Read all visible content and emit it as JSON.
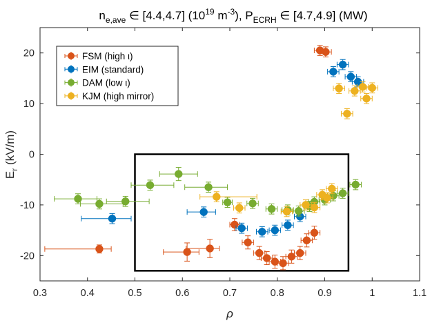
{
  "chart_data": {
    "type": "scatter",
    "title": {
      "main": "n",
      "main_sub": "e,ave",
      "range1": " ∈ [4.4,4.7] (10",
      "range1_sup": "19",
      "range1_unit": " m",
      "range1_unit_sup": "-3",
      "range1_close": "), P",
      "power_sub": "ECRH",
      "range2": " ∈ [4.7,4.9] (MW)"
    },
    "xlabel": "ρ",
    "ylabel": {
      "main": "E",
      "sub": "r",
      "unit": " (kV/m)"
    },
    "xlim": [
      0.3,
      1.1
    ],
    "ylim": [
      -25,
      25
    ],
    "xticks": [
      0.3,
      0.4,
      0.5,
      0.6,
      0.7,
      0.8,
      0.9,
      1.0,
      1.1
    ],
    "xtick_labels": [
      "0.3",
      "0.4",
      "0.5",
      "0.6",
      "0.7",
      "0.8",
      "0.9",
      "1",
      "1.1"
    ],
    "yticks": [
      -20,
      -10,
      0,
      10,
      20
    ],
    "ytick_labels": [
      "-20",
      "-10",
      "0",
      "10",
      "20"
    ],
    "highlight_box": {
      "x": [
        0.5,
        0.95
      ],
      "y": [
        -23,
        0
      ]
    },
    "legend_position": "top-left",
    "series": [
      {
        "name": "FSM (high ι)",
        "color": "#D95319",
        "points": [
          {
            "x": 0.425,
            "y": -18.7,
            "xerr": [
              0.115,
              0.025
            ],
            "yerr": 0.8
          },
          {
            "x": 0.61,
            "y": -19.3,
            "xerr": [
              0.05,
              0.025
            ],
            "yerr": 1.8
          },
          {
            "x": 0.658,
            "y": -18.6,
            "xerr": [
              0.05,
              0.02
            ],
            "yerr": 1.8
          },
          {
            "x": 0.71,
            "y": -13.9,
            "xerr": [
              0.01,
              0.01
            ],
            "yerr": 1.2
          },
          {
            "x": 0.738,
            "y": -17.4,
            "xerr": [
              0.012,
              0.012
            ],
            "yerr": 1.3
          },
          {
            "x": 0.762,
            "y": -19.5,
            "xerr": [
              0.012,
              0.012
            ],
            "yerr": 1.3
          },
          {
            "x": 0.778,
            "y": -20.5,
            "xerr": [
              0.012,
              0.012
            ],
            "yerr": 1.3
          },
          {
            "x": 0.795,
            "y": -21.2,
            "xerr": [
              0.012,
              0.012
            ],
            "yerr": 1.3
          },
          {
            "x": 0.812,
            "y": -21.5,
            "xerr": [
              0.012,
              0.012
            ],
            "yerr": 1.3
          },
          {
            "x": 0.83,
            "y": -20.2,
            "xerr": [
              0.012,
              0.012
            ],
            "yerr": 1.3
          },
          {
            "x": 0.848,
            "y": -19.5,
            "xerr": [
              0.012,
              0.012
            ],
            "yerr": 1.3
          },
          {
            "x": 0.862,
            "y": -17.0,
            "xerr": [
              0.012,
              0.012
            ],
            "yerr": 1.3
          },
          {
            "x": 0.878,
            "y": -15.5,
            "xerr": [
              0.012,
              0.012
            ],
            "yerr": 1.3
          },
          {
            "x": 0.89,
            "y": 20.5,
            "xerr": [
              0.012,
              0.012
            ],
            "yerr": 1.0
          },
          {
            "x": 0.902,
            "y": 20.2,
            "xerr": [
              0.012,
              0.012
            ],
            "yerr": 1.0
          }
        ]
      },
      {
        "name": "EIM (standard)",
        "color": "#0072BD",
        "points": [
          {
            "x": 0.452,
            "y": -12.7,
            "xerr": [
              0.065,
              0.04
            ],
            "yerr": 1.0
          },
          {
            "x": 0.645,
            "y": -11.4,
            "xerr": [
              0.035,
              0.025
            ],
            "yerr": 1.0
          },
          {
            "x": 0.725,
            "y": -14.6,
            "xerr": [
              0.012,
              0.012
            ],
            "yerr": 1.0
          },
          {
            "x": 0.768,
            "y": -15.3,
            "xerr": [
              0.012,
              0.012
            ],
            "yerr": 1.0
          },
          {
            "x": 0.795,
            "y": -15.0,
            "xerr": [
              0.012,
              0.012
            ],
            "yerr": 1.0
          },
          {
            "x": 0.822,
            "y": -14.0,
            "xerr": [
              0.012,
              0.012
            ],
            "yerr": 1.0
          },
          {
            "x": 0.848,
            "y": -12.3,
            "xerr": [
              0.012,
              0.012
            ],
            "yerr": 1.0
          },
          {
            "x": 0.918,
            "y": 16.3,
            "xerr": [
              0.012,
              0.012
            ],
            "yerr": 1.0
          },
          {
            "x": 0.938,
            "y": 17.7,
            "xerr": [
              0.012,
              0.012
            ],
            "yerr": 1.0
          },
          {
            "x": 0.955,
            "y": 15.3,
            "xerr": [
              0.012,
              0.012
            ],
            "yerr": 1.0
          },
          {
            "x": 0.97,
            "y": 14.3,
            "xerr": [
              0.012,
              0.012
            ],
            "yerr": 1.0
          }
        ]
      },
      {
        "name": "DAM (low ι)",
        "color": "#77AC30",
        "points": [
          {
            "x": 0.38,
            "y": -8.8,
            "xerr": [
              0.05,
              0.04
            ],
            "yerr": 1.0
          },
          {
            "x": 0.425,
            "y": -9.8,
            "xerr": [
              0.04,
              0.05
            ],
            "yerr": 1.0
          },
          {
            "x": 0.48,
            "y": -9.3,
            "xerr": [
              0.04,
              0.05
            ],
            "yerr": 1.0
          },
          {
            "x": 0.532,
            "y": -6.1,
            "xerr": [
              0.04,
              0.05
            ],
            "yerr": 1.0
          },
          {
            "x": 0.592,
            "y": -3.9,
            "xerr": [
              0.04,
              0.04
            ],
            "yerr": 1.3
          },
          {
            "x": 0.655,
            "y": -6.5,
            "xerr": [
              0.05,
              0.04
            ],
            "yerr": 1.0
          },
          {
            "x": 0.695,
            "y": -9.5,
            "xerr": [
              0.01,
              0.01
            ],
            "yerr": 1.0
          },
          {
            "x": 0.748,
            "y": -9.7,
            "xerr": [
              0.012,
              0.012
            ],
            "yerr": 1.0
          },
          {
            "x": 0.788,
            "y": -10.8,
            "xerr": [
              0.012,
              0.012
            ],
            "yerr": 1.0
          },
          {
            "x": 0.822,
            "y": -11.0,
            "xerr": [
              0.012,
              0.012
            ],
            "yerr": 1.0
          },
          {
            "x": 0.845,
            "y": -11.2,
            "xerr": [
              0.012,
              0.012
            ],
            "yerr": 1.0
          },
          {
            "x": 0.868,
            "y": -10.3,
            "xerr": [
              0.012,
              0.012
            ],
            "yerr": 1.0
          },
          {
            "x": 0.878,
            "y": -9.4,
            "xerr": [
              0.012,
              0.012
            ],
            "yerr": 1.0
          },
          {
            "x": 0.9,
            "y": -9.0,
            "xerr": [
              0.012,
              0.012
            ],
            "yerr": 1.0
          },
          {
            "x": 0.918,
            "y": -8.2,
            "xerr": [
              0.012,
              0.012
            ],
            "yerr": 1.0
          },
          {
            "x": 0.938,
            "y": -7.7,
            "xerr": [
              0.012,
              0.012
            ],
            "yerr": 1.0
          },
          {
            "x": 0.965,
            "y": -6.0,
            "xerr": [
              0.012,
              0.012
            ],
            "yerr": 1.0
          }
        ]
      },
      {
        "name": "KJM (high mirror)",
        "color": "#EDB120",
        "points": [
          {
            "x": 0.672,
            "y": -8.4,
            "xerr": [
              0.035,
              0.085
            ],
            "yerr": 1.0
          },
          {
            "x": 0.72,
            "y": -10.6,
            "xerr": [
              0.012,
              0.012
            ],
            "yerr": 1.0
          },
          {
            "x": 0.82,
            "y": -11.3,
            "xerr": [
              0.012,
              0.012
            ],
            "yerr": 1.0
          },
          {
            "x": 0.86,
            "y": -10.0,
            "xerr": [
              0.012,
              0.012
            ],
            "yerr": 1.0
          },
          {
            "x": 0.878,
            "y": -10.5,
            "xerr": [
              0.012,
              0.012
            ],
            "yerr": 1.0
          },
          {
            "x": 0.895,
            "y": -8.0,
            "xerr": [
              0.012,
              0.012
            ],
            "yerr": 1.0
          },
          {
            "x": 0.905,
            "y": -8.6,
            "xerr": [
              0.012,
              0.012
            ],
            "yerr": 1.0
          },
          {
            "x": 0.915,
            "y": -6.8,
            "xerr": [
              0.012,
              0.012
            ],
            "yerr": 1.0
          },
          {
            "x": 0.93,
            "y": 13.0,
            "xerr": [
              0.012,
              0.012
            ],
            "yerr": 1.0
          },
          {
            "x": 0.947,
            "y": 8.0,
            "xerr": [
              0.012,
              0.012
            ],
            "yerr": 1.0
          },
          {
            "x": 0.963,
            "y": 12.5,
            "xerr": [
              0.012,
              0.012
            ],
            "yerr": 1.0
          },
          {
            "x": 0.98,
            "y": 13.3,
            "xerr": [
              0.012,
              0.012
            ],
            "yerr": 1.0
          },
          {
            "x": 0.988,
            "y": 11.0,
            "xerr": [
              0.012,
              0.012
            ],
            "yerr": 1.0
          },
          {
            "x": 1.0,
            "y": 13.1,
            "xerr": [
              0.012,
              0.012
            ],
            "yerr": 1.0
          }
        ]
      }
    ]
  }
}
